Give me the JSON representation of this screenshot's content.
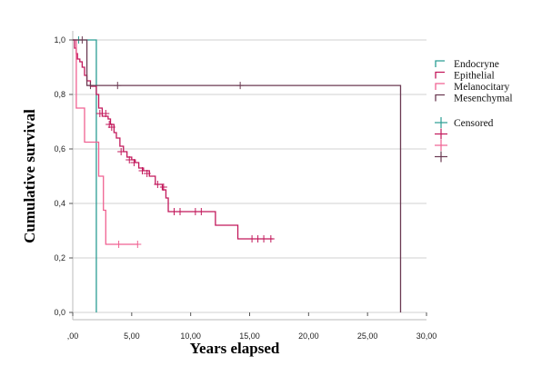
{
  "chart_data": {
    "type": "line",
    "subtype": "kaplan-meier step",
    "xlabel": "Years elapsed",
    "ylabel": "Cumulative survival",
    "xlim": [
      0,
      30
    ],
    "ylim": [
      0,
      1
    ],
    "x_ticks": [
      ",00",
      "5,00",
      "10,00",
      "15,00",
      "20,00",
      "25,00",
      "30,00"
    ],
    "y_ticks": [
      "0,0",
      "0,2",
      "0,4",
      "0,6",
      "0,8",
      "1,0"
    ],
    "grid": "horizontal",
    "legend_position": "right",
    "censored_label": "Censored",
    "series": [
      {
        "name": "Endocryne",
        "color": "#2a9d93",
        "steps": [
          [
            0,
            1.0
          ],
          [
            2.0,
            1.0
          ],
          [
            2.0,
            0.0
          ]
        ],
        "censored": [
          [
            0.5,
            1.0
          ]
        ]
      },
      {
        "name": "Epithelial",
        "color": "#c2185b",
        "steps": [
          [
            0,
            1.0
          ],
          [
            0.15,
            0.97
          ],
          [
            0.3,
            0.95
          ],
          [
            0.4,
            0.93
          ],
          [
            0.6,
            0.92
          ],
          [
            0.8,
            0.9
          ],
          [
            1.0,
            0.87
          ],
          [
            1.2,
            0.85
          ],
          [
            1.5,
            0.83
          ],
          [
            2.0,
            0.8
          ],
          [
            2.2,
            0.75
          ],
          [
            2.5,
            0.72
          ],
          [
            3.0,
            0.71
          ],
          [
            3.2,
            0.69
          ],
          [
            3.5,
            0.66
          ],
          [
            3.7,
            0.64
          ],
          [
            4.0,
            0.61
          ],
          [
            4.3,
            0.59
          ],
          [
            4.6,
            0.57
          ],
          [
            5.0,
            0.56
          ],
          [
            5.3,
            0.55
          ],
          [
            5.6,
            0.53
          ],
          [
            6.0,
            0.52
          ],
          [
            6.5,
            0.5
          ],
          [
            7.0,
            0.47
          ],
          [
            7.6,
            0.45
          ],
          [
            7.9,
            0.42
          ],
          [
            8.1,
            0.37
          ],
          [
            12.1,
            0.37
          ],
          [
            12.1,
            0.32
          ],
          [
            14.0,
            0.32
          ],
          [
            14.0,
            0.27
          ],
          [
            17.0,
            0.27
          ]
        ],
        "censored": [
          [
            2.3,
            0.73
          ],
          [
            2.8,
            0.73
          ],
          [
            3.1,
            0.69
          ],
          [
            3.3,
            0.68
          ],
          [
            4.1,
            0.59
          ],
          [
            4.8,
            0.56
          ],
          [
            5.2,
            0.55
          ],
          [
            5.9,
            0.52
          ],
          [
            6.3,
            0.51
          ],
          [
            7.2,
            0.47
          ],
          [
            7.7,
            0.46
          ],
          [
            8.6,
            0.37
          ],
          [
            9.1,
            0.37
          ],
          [
            10.4,
            0.37
          ],
          [
            10.9,
            0.37
          ],
          [
            15.2,
            0.27
          ],
          [
            15.7,
            0.27
          ],
          [
            16.2,
            0.27
          ],
          [
            16.8,
            0.27
          ]
        ]
      },
      {
        "name": "Melanocitary",
        "color": "#f06292",
        "steps": [
          [
            0,
            1.0
          ],
          [
            0.3,
            1.0
          ],
          [
            0.3,
            0.75
          ],
          [
            1.0,
            0.75
          ],
          [
            1.0,
            0.625
          ],
          [
            2.2,
            0.625
          ],
          [
            2.2,
            0.5
          ],
          [
            2.6,
            0.5
          ],
          [
            2.6,
            0.375
          ],
          [
            2.8,
            0.375
          ],
          [
            2.8,
            0.25
          ],
          [
            5.5,
            0.25
          ]
        ],
        "censored": [
          [
            3.9,
            0.25
          ],
          [
            5.5,
            0.25
          ]
        ]
      },
      {
        "name": "Mesenchymal",
        "color": "#6b3a52",
        "steps": [
          [
            0,
            1.0
          ],
          [
            1.2,
            1.0
          ],
          [
            1.2,
            0.833
          ],
          [
            27.8,
            0.833
          ],
          [
            27.8,
            0.0
          ]
        ],
        "censored": [
          [
            0.8,
            1.0
          ],
          [
            1.5,
            0.833
          ],
          [
            3.8,
            0.833
          ],
          [
            14.2,
            0.833
          ]
        ]
      }
    ]
  }
}
